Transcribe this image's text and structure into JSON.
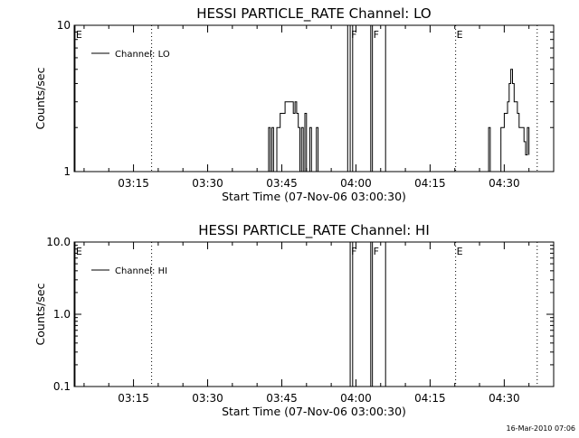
{
  "chart_data": [
    {
      "type": "line",
      "title": "HESSI PARTICLE_RATE Channel: LO",
      "xlabel": "Start Time (07-Nov-06 03:00:30)",
      "ylabel": "Counts/sec",
      "xlim": [
        "03:03:00",
        "04:40:00"
      ],
      "ylim": [
        1,
        10
      ],
      "yscale": "log",
      "y_tick_labels": [
        "1",
        "10"
      ],
      "x_tick_labels": [
        "03:15",
        "03:30",
        "03:45",
        "04:00",
        "04:15",
        "04:30"
      ],
      "legend": "Channel: LO",
      "legend_position": "top-left",
      "grid": false,
      "series": [
        {
          "name": "Channel: LO",
          "color": "#000000",
          "points": [
            [
              "03:42:00",
              1
            ],
            [
              "03:42:20",
              2
            ],
            [
              "03:42:40",
              1
            ],
            [
              "03:43:00",
              2
            ],
            [
              "03:43:20",
              1
            ],
            [
              "03:44:00",
              2
            ],
            [
              "03:44:40",
              2.5
            ],
            [
              "03:45:20",
              2.5
            ],
            [
              "03:45:40",
              3
            ],
            [
              "03:47:00",
              3
            ],
            [
              "03:47:20",
              2.5
            ],
            [
              "03:47:40",
              3
            ],
            [
              "03:48:00",
              2.5
            ],
            [
              "03:48:20",
              2
            ],
            [
              "03:48:40",
              1
            ],
            [
              "03:49:00",
              2
            ],
            [
              "03:49:20",
              1
            ],
            [
              "03:49:40",
              2.5
            ],
            [
              "03:50:00",
              1
            ],
            [
              "03:50:40",
              2
            ],
            [
              "03:51:00",
              1
            ],
            [
              "03:51:40",
              1
            ],
            [
              "03:52:00",
              2
            ],
            [
              "03:52:20",
              1
            ],
            [
              "03:58:20",
              10
            ],
            [
              "03:59:00",
              10
            ],
            [
              "03:59:20",
              1
            ],
            [
              "04:03:00",
              10
            ],
            [
              "04:05:40",
              10
            ],
            [
              "04:06:00",
              1
            ],
            [
              "04:26:30",
              1
            ],
            [
              "04:26:50",
              2
            ],
            [
              "04:27:10",
              1
            ],
            [
              "04:29:00",
              1
            ],
            [
              "04:29:20",
              2
            ],
            [
              "04:30:00",
              2.5
            ],
            [
              "04:30:40",
              3
            ],
            [
              "04:31:00",
              4
            ],
            [
              "04:31:20",
              5
            ],
            [
              "04:31:40",
              4
            ],
            [
              "04:32:00",
              3
            ],
            [
              "04:32:40",
              2.5
            ],
            [
              "04:33:00",
              2
            ],
            [
              "04:33:40",
              2
            ],
            [
              "04:34:00",
              1.6
            ],
            [
              "04:34:20",
              1.3
            ],
            [
              "04:34:40",
              2
            ],
            [
              "04:35:00",
              1.3
            ]
          ]
        }
      ],
      "vertical_markers": [
        {
          "time": "03:03:10",
          "label": "E",
          "style": "solid"
        },
        {
          "time": "03:18:40",
          "label": "",
          "style": "dotted"
        },
        {
          "time": "03:58:50",
          "label": "F",
          "style": "solid"
        },
        {
          "time": "04:03:20",
          "label": "F",
          "style": "solid"
        },
        {
          "time": "04:20:10",
          "label": "E",
          "style": "dotted"
        },
        {
          "time": "04:36:40",
          "label": "",
          "style": "dotted"
        }
      ]
    },
    {
      "type": "line",
      "title": "HESSI PARTICLE_RATE Channel: HI",
      "xlabel": "Start Time (07-Nov-06 03:00:30)",
      "ylabel": "Counts/sec",
      "xlim": [
        "03:03:00",
        "04:40:00"
      ],
      "ylim": [
        0.1,
        10
      ],
      "yscale": "log",
      "y_tick_labels": [
        "0.1",
        "1.0",
        "10.0"
      ],
      "x_tick_labels": [
        "03:15",
        "03:30",
        "03:45",
        "04:00",
        "04:15",
        "04:30"
      ],
      "legend": "Channel: HI",
      "legend_position": "top-left",
      "grid": false,
      "series": [
        {
          "name": "Channel: HI",
          "color": "#000000",
          "points": [
            [
              "03:58:20",
              10
            ],
            [
              "03:59:00",
              10
            ],
            [
              "03:59:20",
              0.1
            ],
            [
              "04:03:00",
              10
            ],
            [
              "04:05:40",
              10
            ],
            [
              "04:06:00",
              0.1
            ]
          ]
        }
      ],
      "vertical_markers": [
        {
          "time": "03:03:10",
          "label": "E",
          "style": "solid"
        },
        {
          "time": "03:18:40",
          "label": "",
          "style": "dotted"
        },
        {
          "time": "03:58:50",
          "label": "F",
          "style": "solid"
        },
        {
          "time": "04:03:20",
          "label": "F",
          "style": "solid"
        },
        {
          "time": "04:20:10",
          "label": "E",
          "style": "dotted"
        },
        {
          "time": "04:36:40",
          "label": "",
          "style": "dotted"
        }
      ]
    }
  ],
  "footer": {
    "timestamp": "16-Mar-2010 07:06"
  }
}
